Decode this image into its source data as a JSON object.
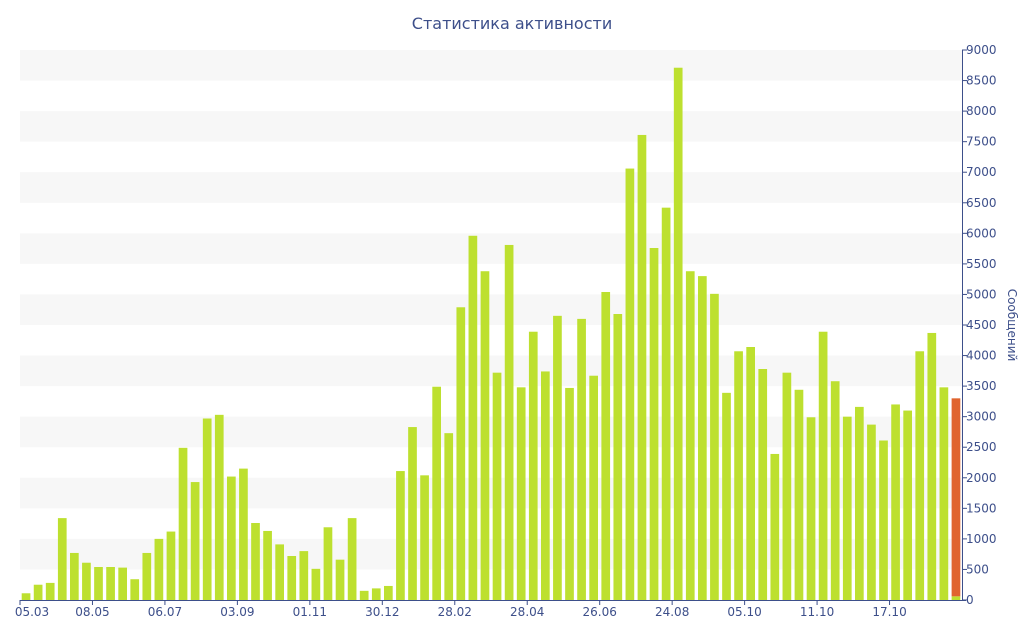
{
  "chart_data": {
    "type": "bar",
    "title": "Статистика активности",
    "ylabel": "Сообщений",
    "xlabel": "",
    "ylim": [
      0,
      9000
    ],
    "yticks": [
      0,
      500,
      1000,
      1500,
      2000,
      2500,
      3000,
      3500,
      4000,
      4500,
      5000,
      5500,
      6000,
      6500,
      7000,
      7500,
      8000,
      8500,
      9000
    ],
    "x_tick_labels": [
      {
        "label": "05.03",
        "index": 0
      },
      {
        "label": "08.05",
        "index": 6
      },
      {
        "label": "06.07",
        "index": 12
      },
      {
        "label": "03.09",
        "index": 18
      },
      {
        "label": "01.11",
        "index": 24
      },
      {
        "label": "30.12",
        "index": 30
      },
      {
        "label": "28.02",
        "index": 36
      },
      {
        "label": "28.04",
        "index": 42
      },
      {
        "label": "26.06",
        "index": 48
      },
      {
        "label": "24.08",
        "index": 54
      },
      {
        "label": "05.10",
        "index": 60
      },
      {
        "label": "11.10",
        "index": 66
      },
      {
        "label": "17.10",
        "index": 72
      }
    ],
    "grid": "horizontal bands",
    "y_axis_position": "right",
    "series": [
      {
        "color": "#bde02f",
        "values": [
          110,
          250,
          280,
          1340,
          770,
          610,
          540,
          540,
          530,
          340,
          770,
          1000,
          1120,
          2490,
          1930,
          2970,
          3030,
          2020,
          2150,
          1260,
          1130,
          910,
          720,
          800,
          510,
          1190,
          660,
          1340,
          150,
          190,
          230,
          2110,
          2830,
          2040,
          3490,
          2730,
          4790,
          5960,
          5380,
          3720,
          5810,
          3480,
          4390,
          3740,
          4650,
          3470,
          4600,
          3670,
          5040,
          4680,
          7060,
          7610,
          5760,
          6420,
          8710,
          5380,
          5300,
          5010,
          3390,
          4070,
          4140,
          3780,
          2390,
          3720,
          3440,
          2990,
          4390,
          3580,
          3000,
          3160,
          2870,
          2610,
          3200,
          3100,
          4070,
          4370,
          3480,
          60
        ]
      },
      {
        "color": "#e0642f",
        "values": [
          0,
          0,
          0,
          0,
          0,
          0,
          0,
          0,
          0,
          0,
          0,
          0,
          0,
          0,
          0,
          0,
          0,
          0,
          0,
          0,
          0,
          0,
          0,
          0,
          0,
          0,
          0,
          0,
          0,
          0,
          0,
          0,
          0,
          0,
          0,
          0,
          0,
          0,
          0,
          0,
          0,
          0,
          0,
          0,
          0,
          0,
          0,
          0,
          0,
          0,
          0,
          0,
          0,
          0,
          0,
          0,
          0,
          0,
          0,
          0,
          0,
          0,
          0,
          0,
          0,
          0,
          0,
          0,
          0,
          0,
          0,
          0,
          0,
          0,
          0,
          0,
          0,
          3240
        ]
      }
    ],
    "colors": {
      "band": "#f7f7f7",
      "axis": "#3d4f8a",
      "text": "#3d4f8a"
    }
  }
}
